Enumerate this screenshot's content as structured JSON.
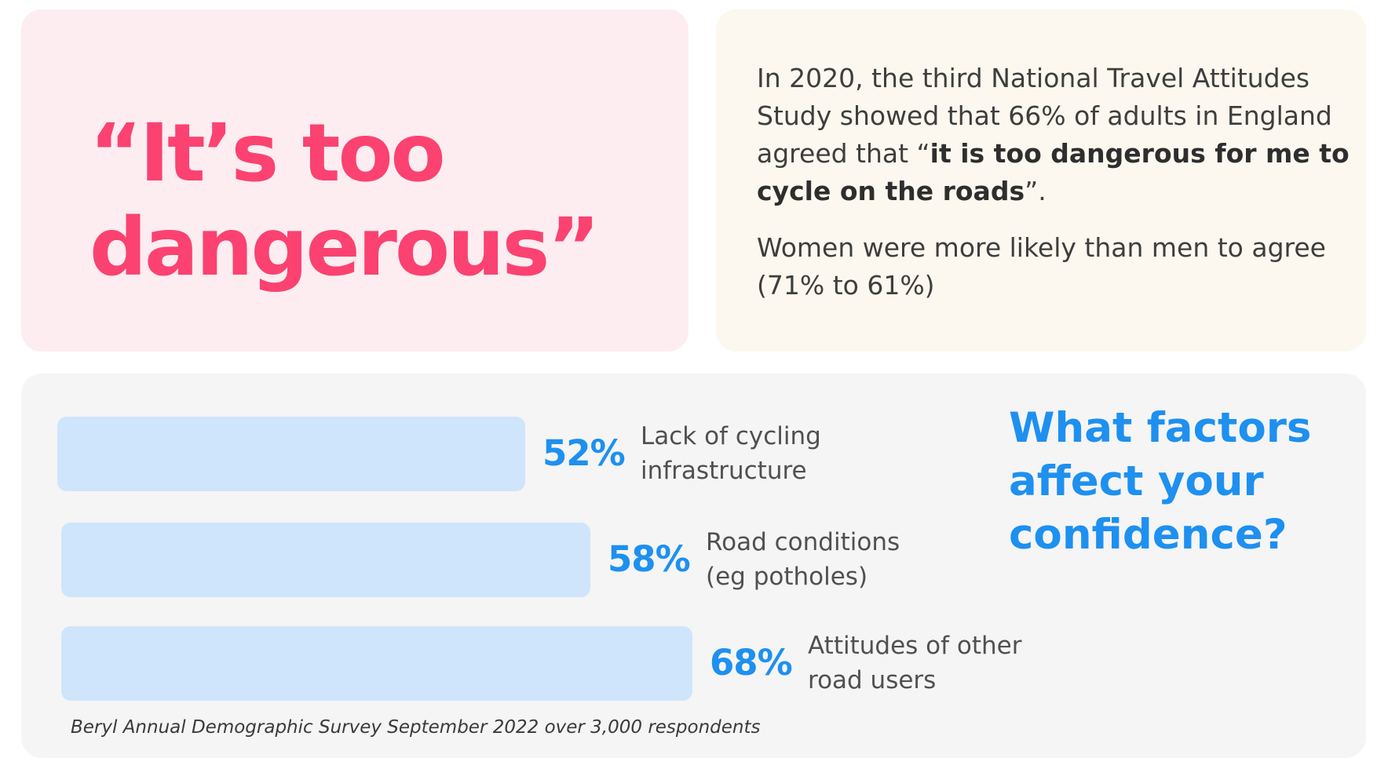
{
  "quote": {
    "line1": "“It’s too",
    "line2": "dangerous”"
  },
  "stat": {
    "p1_intro": "In 2020, the third National Travel Attitudes Study showed that 66% of adults in England agreed that “",
    "p1_bold": "it is too dangerous for me to cycle on the roads",
    "p1_end": "”.",
    "p2": "Women were more likely than men to agree (71% to 61%)"
  },
  "colors": {
    "accent_pink": "#fb4270",
    "accent_blue": "#1e90f0",
    "bar_fill": "#cfe5fb"
  },
  "chart_data": {
    "type": "bar",
    "orientation": "horizontal",
    "title": "What factors affect your confidence?",
    "source": "Beryl Annual Demographic Survey September 2022 over 3,000 respondents",
    "unit": "%",
    "categories": [
      {
        "line1": "Lack of cycling",
        "line2": "infrastructure"
      },
      {
        "line1": "Road conditions",
        "line2": "(eg potholes)"
      },
      {
        "line1": "Attitudes of other",
        "line2": "road users"
      }
    ],
    "values": [
      52,
      58,
      68
    ],
    "value_labels": [
      "52%",
      "58%",
      "68%"
    ]
  }
}
